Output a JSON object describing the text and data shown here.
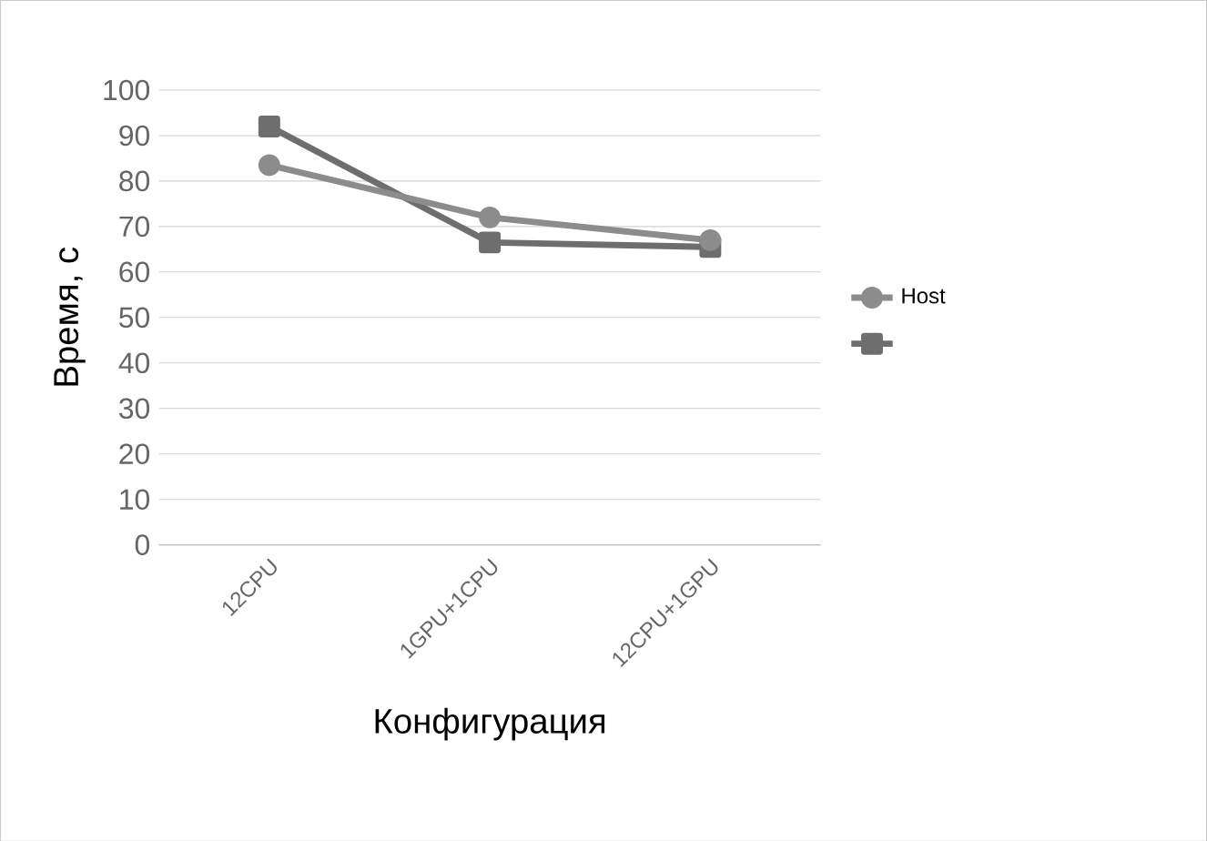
{
  "chart_data": {
    "type": "line",
    "xlabel": "Конфигурация",
    "ylabel": "Время, с",
    "categories": [
      "12CPU",
      "1GPU+1CPU",
      "12CPU+1GPU"
    ],
    "series": [
      {
        "name": "Host",
        "color": "#8c8c8c",
        "marker": "circle",
        "values": [
          83.5,
          72,
          67
        ]
      },
      {
        "color": "#6e6e6e",
        "marker": "square",
        "values": [
          92,
          66.5,
          65.5
        ]
      }
    ],
    "ylim": [
      0,
      100
    ],
    "yticks": [
      0,
      10,
      20,
      30,
      40,
      50,
      60,
      70,
      80,
      90,
      100
    ],
    "grid": "y",
    "legend": "right"
  }
}
